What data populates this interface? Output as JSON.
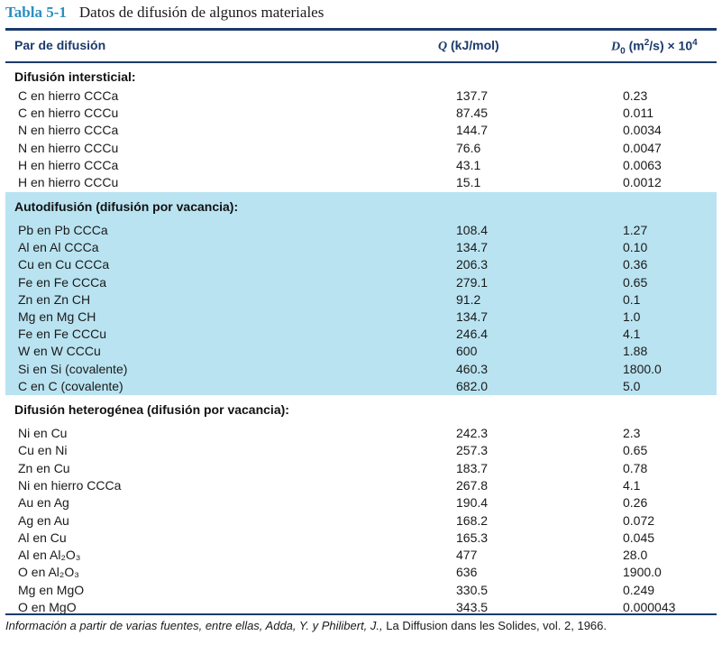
{
  "caption": {
    "number": "Tabla 5-1",
    "title": "Datos de difusión de algunos materiales"
  },
  "headers": {
    "pair": "Par de difusión",
    "q_var": "Q",
    "q_unit": "(kJ/mol)",
    "d_var": "D",
    "d_sub": "0",
    "d_unit_a": "(m",
    "d_sup": "2",
    "d_unit_b": "/s) × 10",
    "d_exp": "4"
  },
  "sections": [
    {
      "title": "Difusión intersticial:",
      "rows": [
        [
          "C en hierro CCCa",
          "137.7",
          "0.23"
        ],
        [
          "C en hierro CCCu",
          "87.45",
          "0.011"
        ],
        [
          "N en hierro CCCa",
          "144.7",
          "0.0034"
        ],
        [
          "N en hierro CCCu",
          "76.6",
          "0.0047"
        ],
        [
          "H en hierro CCCa",
          "43.1",
          "0.0063"
        ],
        [
          "H en hierro CCCu",
          "15.1",
          "0.0012"
        ]
      ]
    },
    {
      "title": "Autodifusión (difusión por vacancia):",
      "rows": [
        [
          "Pb en Pb CCCa",
          "108.4",
          "1.27"
        ],
        [
          "Al en Al CCCa",
          "134.7",
          "0.10"
        ],
        [
          "Cu en Cu CCCa",
          "206.3",
          "0.36"
        ],
        [
          "Fe en Fe CCCa",
          "279.1",
          "0.65"
        ],
        [
          "Zn en Zn CH",
          "91.2",
          "0.1"
        ],
        [
          "Mg en Mg CH",
          "134.7",
          "1.0"
        ],
        [
          "Fe en Fe CCCu",
          "246.4",
          "4.1"
        ],
        [
          "W en W CCCu",
          "600",
          "1.88"
        ],
        [
          "Si en Si (covalente)",
          "460.3",
          "1800.0"
        ],
        [
          "C en C (covalente)",
          "682.0",
          "5.0"
        ]
      ]
    },
    {
      "title": "Difusión heterogénea (difusión por vacancia):",
      "rows": [
        [
          "Ni en Cu",
          "242.3",
          "2.3"
        ],
        [
          "Cu en Ni",
          "257.3",
          "0.65"
        ],
        [
          "Zn en Cu",
          "183.7",
          "0.78"
        ],
        [
          "Ni en hierro CCCa",
          "267.8",
          "4.1"
        ],
        [
          "Au en Ag",
          "190.4",
          "0.26"
        ],
        [
          "Ag en Au",
          "168.2",
          "0.072"
        ],
        [
          "Al en Cu",
          "165.3",
          "0.045"
        ],
        [
          "Al en Al₂O₃",
          "477",
          "28.0"
        ],
        [
          "O en Al₂O₃",
          "636",
          "1900.0"
        ],
        [
          "Mg en MgO",
          "330.5",
          "0.249"
        ],
        [
          "O en MgO",
          "343.5",
          "0.000043"
        ]
      ]
    }
  ],
  "source": {
    "italic": "Información a partir de varias fuentes, entre ellas, Adda, Y. y Philibert, J.,",
    "plain": " La Diffusion dans les Solides, vol. 2, 1966."
  }
}
